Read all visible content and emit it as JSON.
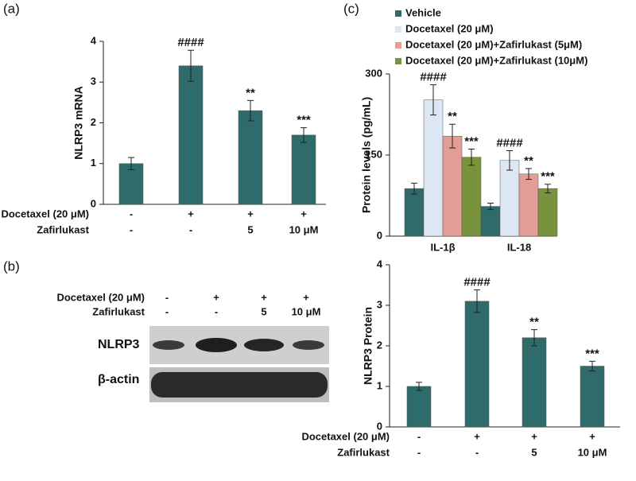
{
  "panels": [
    "(a)",
    "(b)",
    "(c)"
  ],
  "chart_data": [
    {
      "type": "bar",
      "y_label": "NLRP3 mRNA",
      "color": "#2f6b6a",
      "values": [
        1,
        3.4,
        2.3,
        1.7
      ],
      "errors": [
        0.15,
        0.38,
        0.25,
        0.18
      ],
      "annotations": [
        null,
        "####",
        "**",
        "***"
      ],
      "ylim": [
        0,
        4
      ],
      "yticks": [
        0,
        1,
        2,
        3,
        4
      ],
      "conditions": [
        {
          "label": "Docetaxel (20 μM)",
          "values": [
            "-",
            "+",
            "+",
            "+"
          ]
        },
        {
          "label": "Zafirlukast",
          "values": [
            "-",
            "-",
            "5",
            "10 μM"
          ]
        }
      ]
    },
    {
      "type": "grouped-bar",
      "y_label": "Protein levels (pg/mL)",
      "categories": [
        "IL-1β",
        "IL-18"
      ],
      "series": [
        {
          "name": "Vehicle",
          "color": "#2f6b6a",
          "values": [
            88,
            55
          ],
          "errors": [
            10,
            6
          ],
          "annotations": [
            null,
            null
          ]
        },
        {
          "name": "Docetaxel (20 μM)",
          "color": "#dde7f3",
          "values": [
            252,
            140
          ],
          "errors": [
            28,
            18
          ],
          "annotations": [
            "####",
            "####"
          ]
        },
        {
          "name": "Docetaxel (20 μM)+Zafirlukast (5μM)",
          "color": "#e39d97",
          "values": [
            185,
            115
          ],
          "errors": [
            22,
            10
          ],
          "annotations": [
            "**",
            "**"
          ]
        },
        {
          "name": "Docetaxel (20 μM)+Zafirlukast (10μM)",
          "color": "#77933c",
          "values": [
            146,
            88
          ],
          "errors": [
            15,
            8
          ],
          "annotations": [
            "***",
            "***"
          ]
        }
      ],
      "ylim": [
        0,
        300
      ],
      "yticks": [
        0,
        150,
        300
      ]
    },
    {
      "type": "bar",
      "y_label": "NLRP3 Protein",
      "color": "#2f6b6a",
      "values": [
        1,
        3.1,
        2.2,
        1.5
      ],
      "errors": [
        0.1,
        0.28,
        0.2,
        0.12
      ],
      "annotations": [
        null,
        "####",
        "**",
        "***"
      ],
      "ylim": [
        0,
        4
      ],
      "yticks": [
        0,
        1,
        2,
        3,
        4
      ],
      "conditions": [
        {
          "label": "Docetaxel (20 μM)",
          "values": [
            "-",
            "+",
            "+",
            "+"
          ]
        },
        {
          "label": "Zafirlukast",
          "values": [
            "-",
            "-",
            "5",
            "10 μM"
          ]
        }
      ]
    }
  ],
  "blot": {
    "conditions": [
      {
        "label": "Docetaxel (20 μM)",
        "values": [
          "-",
          "+",
          "+",
          "+"
        ]
      },
      {
        "label": "Zafirlukast",
        "values": [
          "-",
          "-",
          "5",
          "10 μM"
        ]
      }
    ],
    "lanes": [
      "NLRP3",
      "β-actin"
    ]
  }
}
